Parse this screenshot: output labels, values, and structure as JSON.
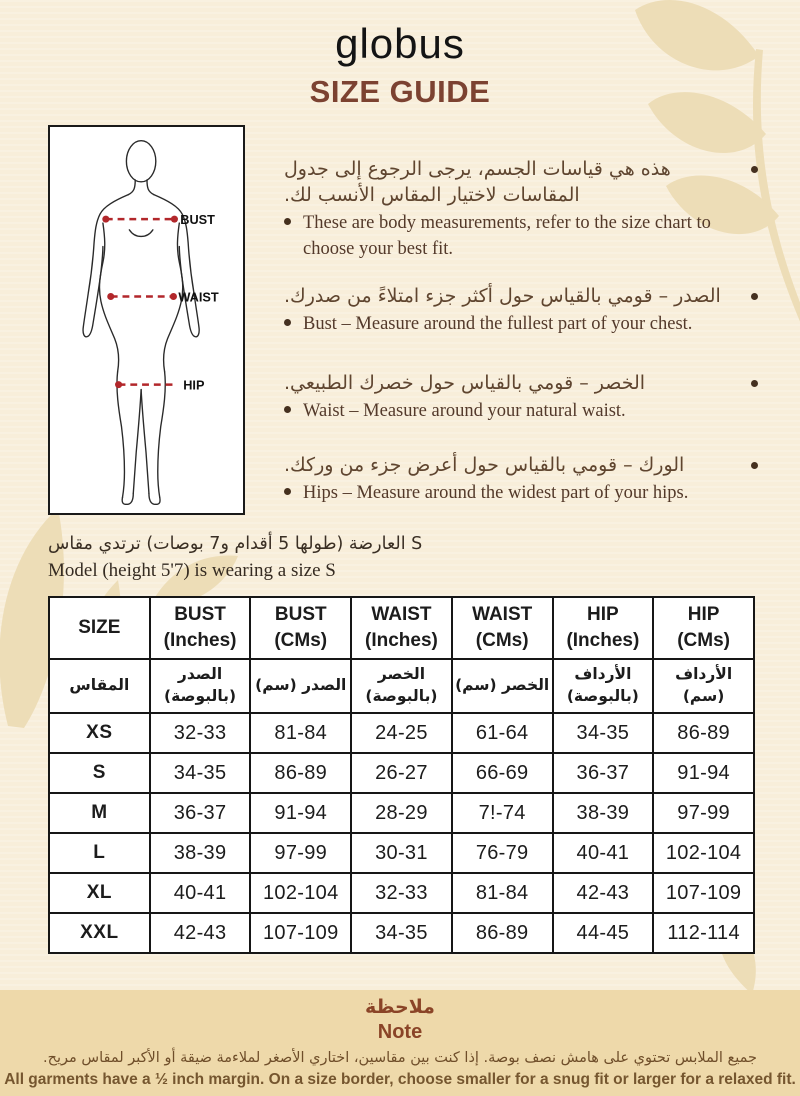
{
  "header": {
    "brand": "globus",
    "title": "SIZE GUIDE"
  },
  "diagram": {
    "labels": {
      "bust": "BUST",
      "waist": "WAIST",
      "hip": "HIP"
    }
  },
  "bullets": [
    {
      "ar": "هذه هي قياسات الجسم، يرجى الرجوع إلى جدول المقاسات لاختيار المقاس الأنسب لك.",
      "en": "These are body measurements, refer to the size chart to choose your best fit."
    },
    {
      "ar": "الصدر – قومي بالقياس حول أكثر جزء امتلاءً من صدرك.",
      "en": "Bust – Measure around the fullest part of your chest."
    },
    {
      "ar": "الخصر – قومي بالقياس حول خصرك الطبيعي.",
      "en": "Waist – Measure around your natural waist."
    },
    {
      "ar": "الورك – قومي بالقياس حول أعرض جزء من وركك.",
      "en": "Hips – Measure around the widest part of your hips."
    }
  ],
  "model_note": {
    "ar": "العارضة (طولها 5 أقدام و7 بوصات) ترتدي مقاس S",
    "en": "Model (height 5'7) is wearing a size S"
  },
  "table": {
    "headers_en": [
      "SIZE",
      "BUST\n(Inches)",
      "BUST\n(CMs)",
      "WAIST\n(Inches)",
      "WAIST\n(CMs)",
      "HIP\n(Inches)",
      "HIP\n(CMs)"
    ],
    "headers_ar": [
      "المقاس",
      "الصدر (بالبوصة)",
      "الصدر (سم)",
      "الخصر (بالبوصة)",
      "الخصر (سم)",
      "الأرداف (بالبوصة)",
      "الأرداف (سم)"
    ],
    "rows": [
      [
        "XS",
        "32-33",
        "81-84",
        "24-25",
        "61-64",
        "34-35",
        "86-89"
      ],
      [
        "S",
        "34-35",
        "86-89",
        "26-27",
        "66-69",
        "36-37",
        "91-94"
      ],
      [
        "M",
        "36-37",
        "91-94",
        "28-29",
        "7!-74",
        "38-39",
        "97-99"
      ],
      [
        "L",
        "38-39",
        "97-99",
        "30-31",
        "76-79",
        "40-41",
        "102-104"
      ],
      [
        "XL",
        "40-41",
        "102-104",
        "32-33",
        "81-84",
        "42-43",
        "107-109"
      ],
      [
        "XXL",
        "42-43",
        "107-109",
        "34-35",
        "86-89",
        "44-45",
        "112-114"
      ]
    ]
  },
  "footer": {
    "title_ar": "ملاحظة",
    "title_en": "Note",
    "body_ar": "جميع الملابس تحتوي على هامش نصف بوصة. إذا كنت بين مقاسين، اختاري الأصغر لملاءمة ضيقة أو الأكبر لمقاس مريح.",
    "body_en": "All garments have a ½ inch margin. On a size border, choose smaller for a snug fit or larger for a relaxed fit."
  },
  "colors": {
    "bg": "#f8eeda",
    "leaf": "#edddb7",
    "band": "#eed9aa",
    "title": "#7c4231",
    "brown": "#5d4331",
    "note-title": "#8a4427",
    "note-body": "#6f4e2a",
    "red": "#b2272b",
    "ink": "#1c1c1c"
  }
}
